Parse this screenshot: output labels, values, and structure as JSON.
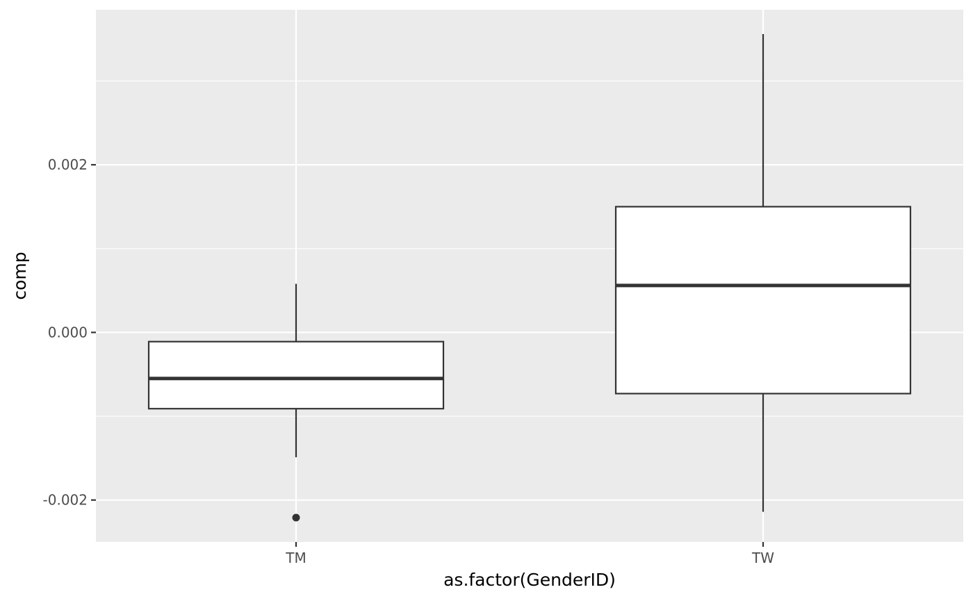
{
  "chart_data": {
    "type": "boxplot",
    "xlabel": "as.factor(GenderID)",
    "ylabel": "comp",
    "categories": [
      "TM",
      "TW"
    ],
    "boxes": [
      {
        "category": "TM",
        "whisker_low": -0.00149,
        "q1": -0.00091,
        "median": -0.00055,
        "q3": -0.00011,
        "whisker_high": 0.00058,
        "outliers": [
          -0.00221
        ]
      },
      {
        "category": "TW",
        "whisker_low": -0.00214,
        "q1": -0.00073,
        "median": 0.00056,
        "q3": 0.0015,
        "whisker_high": 0.00356,
        "outliers": []
      }
    ],
    "yticks": [
      -0.002,
      0.0,
      0.002
    ],
    "ytick_labels": [
      "-0.002",
      "0.000",
      "0.002"
    ],
    "ylim": [
      -0.0025,
      0.00385
    ],
    "grid": true,
    "colors": {
      "panel": "#ebebeb",
      "grid": "#ffffff",
      "box_fill": "#ffffff",
      "box_line": "#333333",
      "tick": "#333333"
    }
  }
}
